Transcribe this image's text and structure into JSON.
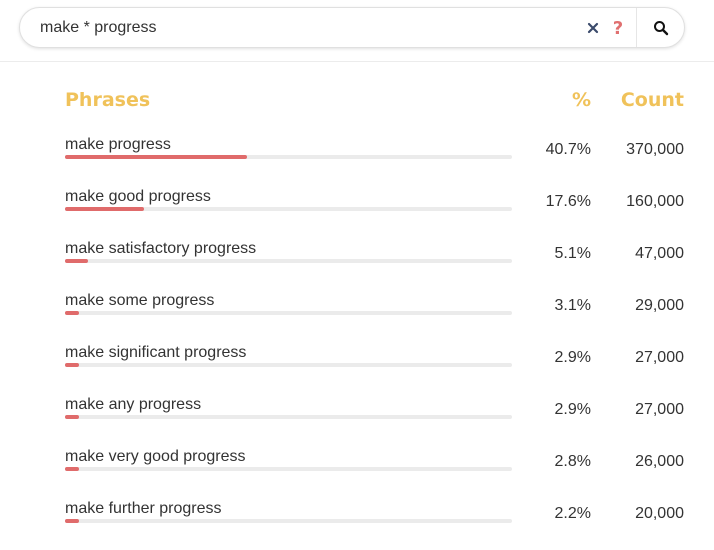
{
  "search": {
    "query": "make * progress",
    "clear_symbol": "×",
    "help_symbol": "?"
  },
  "table": {
    "headers": {
      "phrases": "Phrases",
      "percent": "%",
      "count": "Count"
    },
    "rows": [
      {
        "phrase": "make progress",
        "percent": "40.7%",
        "fraction": 0.407,
        "count": "370,000"
      },
      {
        "phrase": "make good progress",
        "percent": "17.6%",
        "fraction": 0.176,
        "count": "160,000"
      },
      {
        "phrase": "make satisfactory progress",
        "percent": "5.1%",
        "fraction": 0.051,
        "count": "47,000"
      },
      {
        "phrase": "make some progress",
        "percent": "3.1%",
        "fraction": 0.031,
        "count": "29,000"
      },
      {
        "phrase": "make significant progress",
        "percent": "2.9%",
        "fraction": 0.029,
        "count": "27,000"
      },
      {
        "phrase": "make any progress",
        "percent": "2.9%",
        "fraction": 0.029,
        "count": "27,000"
      },
      {
        "phrase": "make very good progress",
        "percent": "2.8%",
        "fraction": 0.028,
        "count": "26,000"
      },
      {
        "phrase": "make further progress",
        "percent": "2.2%",
        "fraction": 0.022,
        "count": "20,000"
      }
    ]
  },
  "colors": {
    "accent_header": "#f0c25a",
    "bar_fill": "#e06b6b",
    "bar_track": "#ebebeb",
    "clear_icon": "#3a4a6b",
    "help_icon": "#e07070"
  },
  "icons": {
    "clear": "close-icon",
    "help": "help-icon",
    "search": "search-icon"
  }
}
